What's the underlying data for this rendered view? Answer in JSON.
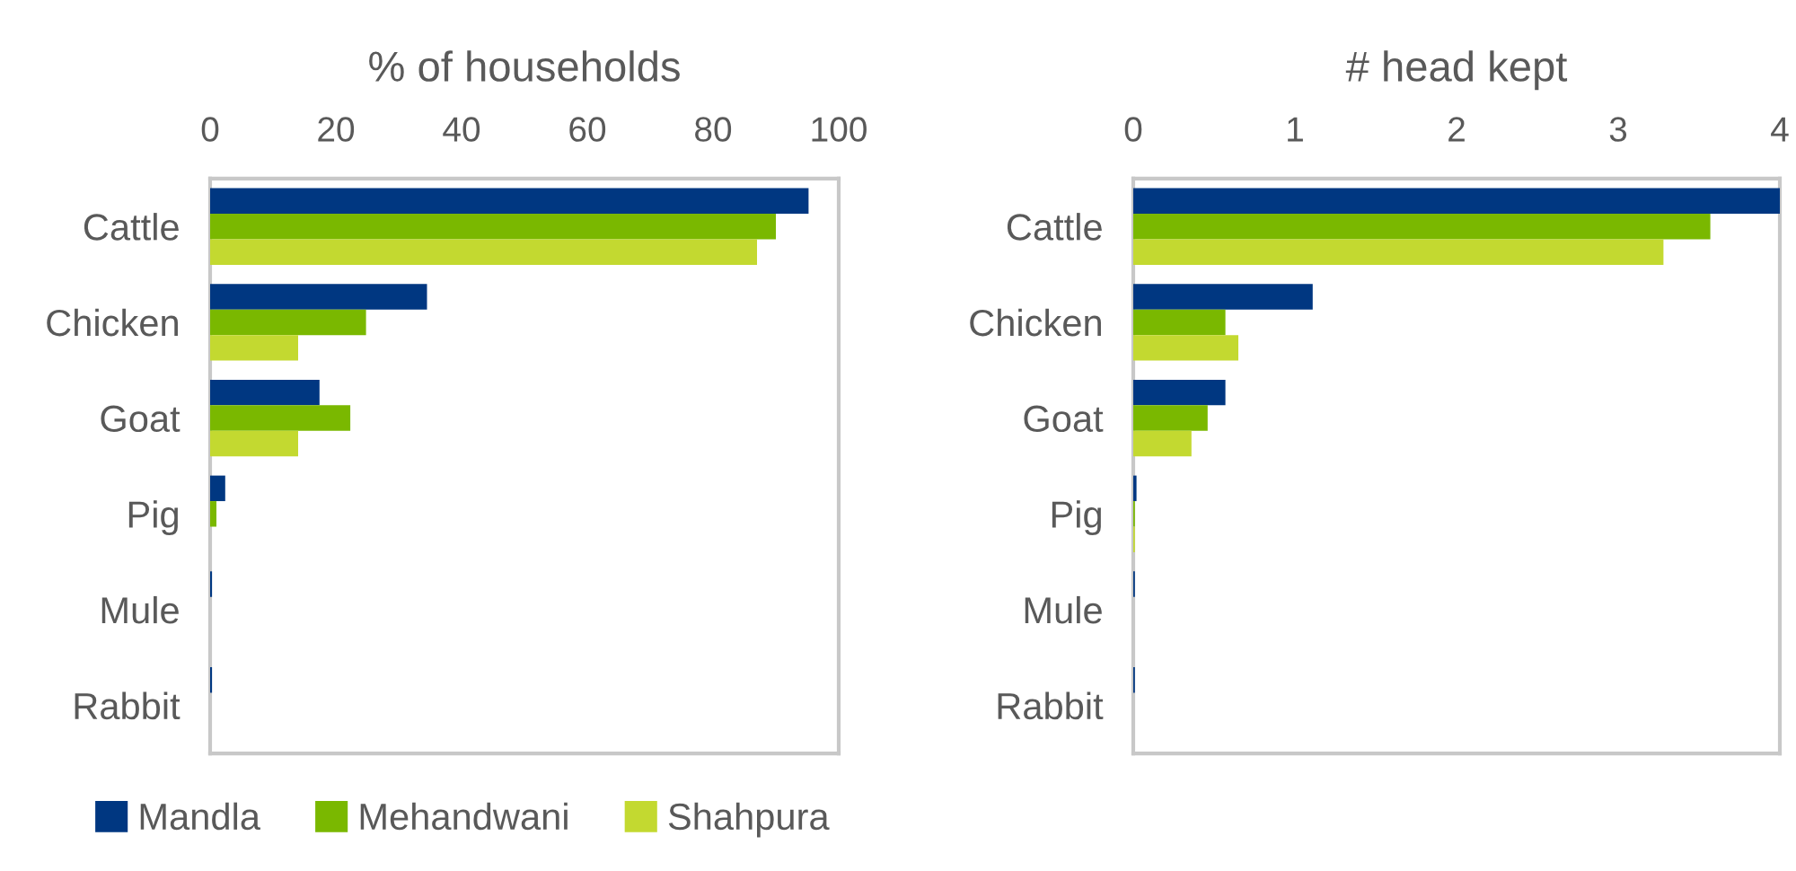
{
  "chart_data": [
    {
      "type": "bar",
      "orientation": "horizontal",
      "xlabel": "% of households",
      "categories": [
        "Cattle",
        "Chicken",
        "Goat",
        "Pig",
        "Mule",
        "Rabbit"
      ],
      "series": [
        {
          "name": "Mandla",
          "color": "#003781",
          "values": [
            95.2,
            34.5,
            17.4,
            2.4,
            0.3,
            0.3
          ]
        },
        {
          "name": "Mehandwani",
          "color": "#7ab800",
          "values": [
            90,
            24.8,
            22.3,
            1,
            0,
            0
          ]
        },
        {
          "name": "Shahpura",
          "color": "#c3d930",
          "values": [
            87,
            14,
            14,
            0,
            0,
            0
          ]
        }
      ],
      "xlim": [
        0,
        100
      ],
      "xticks": [
        0,
        20,
        40,
        60,
        80,
        100
      ],
      "grid": false,
      "legend": "bottom left"
    },
    {
      "type": "bar",
      "orientation": "horizontal",
      "xlabel": "# head kept",
      "categories": [
        "Cattle",
        "Chicken",
        "Goat",
        "Pig",
        "Mule",
        "Rabbit"
      ],
      "series": [
        {
          "color": "#003781",
          "values": [
            4.0,
            1.11,
            0.57,
            0.02,
            0.01,
            0.01
          ]
        },
        {
          "color": "#7ab800",
          "values": [
            3.57,
            0.57,
            0.46,
            0.01,
            0,
            0
          ]
        },
        {
          "color": "#c3d930",
          "values": [
            3.28,
            0.65,
            0.36,
            0.01,
            0,
            0
          ]
        }
      ],
      "xlim": [
        0,
        4
      ],
      "xticks": [
        0,
        1,
        2,
        3,
        4
      ],
      "grid": false
    }
  ]
}
